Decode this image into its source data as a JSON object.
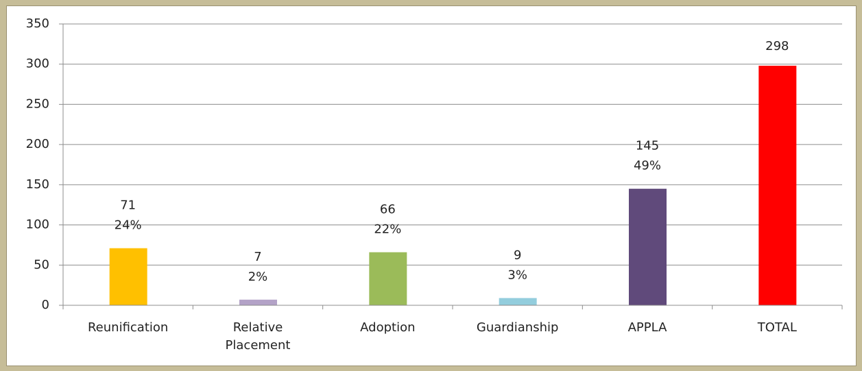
{
  "chart_data": {
    "type": "bar",
    "categories": [
      "Reunification",
      "Relative Placement",
      "Adoption",
      "Guardianship",
      "APPLA",
      "TOTAL"
    ],
    "values": [
      71,
      7,
      66,
      9,
      145,
      298
    ],
    "percent_labels": [
      "24%",
      "2%",
      "22%",
      "3%",
      "49%",
      null
    ],
    "colors": [
      "#ffc000",
      "#b3a2c7",
      "#9bbb59",
      "#93cddd",
      "#604a7b",
      "#ff0000"
    ],
    "ylim": [
      0,
      350
    ],
    "yticks": [
      0,
      50,
      100,
      150,
      200,
      250,
      300,
      350
    ],
    "grid": true
  }
}
